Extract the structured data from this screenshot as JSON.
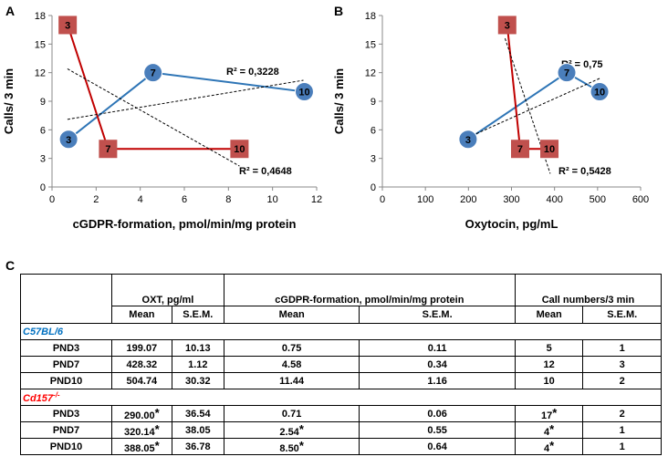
{
  "panels": {
    "a": "A",
    "b": "B",
    "c": "C"
  },
  "chart_data": [
    {
      "type": "scatter",
      "panel": "A",
      "title": "",
      "xlabel": "cGDPR-formation, pmol/min/mg protein",
      "ylabel": "Calls/ 3 min",
      "xlim": [
        0,
        12
      ],
      "ylim": [
        0,
        18
      ],
      "xticks": [
        0,
        2,
        4,
        6,
        8,
        10,
        12
      ],
      "yticks": [
        0,
        3,
        6,
        9,
        12,
        15,
        18
      ],
      "series": [
        {
          "name": "C57BL/6",
          "marker": "circle",
          "color": "#4a7ebb",
          "line_color": "#2e75b6",
          "x": [
            0.75,
            4.58,
            11.44
          ],
          "y": [
            5,
            12,
            10
          ],
          "labels": [
            "3",
            "7",
            "10"
          ]
        },
        {
          "name": "Cd157-/-",
          "marker": "square",
          "color": "#c0504d",
          "line_color": "#c00000",
          "x": [
            0.71,
            2.54,
            8.5
          ],
          "y": [
            17,
            4,
            4
          ],
          "labels": [
            "3",
            "7",
            "10"
          ]
        }
      ],
      "trendlines": [
        {
          "label": "R² = 0,3228",
          "x": [
            0.7,
            11.4
          ],
          "y": [
            7.1,
            11.2
          ]
        },
        {
          "label": "R² = 0,4648",
          "x": [
            0.7,
            8.5
          ],
          "y": [
            12.4,
            2.2
          ]
        }
      ]
    },
    {
      "type": "scatter",
      "panel": "B",
      "title": "",
      "xlabel": "Oxytocin, pg/mL",
      "ylabel": "Calls/ 3 min",
      "xlim": [
        0,
        600
      ],
      "ylim": [
        0,
        18
      ],
      "xticks": [
        0,
        100,
        200,
        300,
        400,
        500,
        600
      ],
      "yticks": [
        0,
        3,
        6,
        9,
        12,
        15,
        18
      ],
      "series": [
        {
          "name": "C57BL/6",
          "marker": "circle",
          "color": "#4a7ebb",
          "line_color": "#2e75b6",
          "x": [
            199.07,
            428.32,
            504.74
          ],
          "y": [
            5,
            12,
            10
          ],
          "labels": [
            "3",
            "7",
            "10"
          ]
        },
        {
          "name": "Cd157-/-",
          "marker": "square",
          "color": "#c0504d",
          "line_color": "#c00000",
          "x": [
            290.0,
            320.14,
            388.05
          ],
          "y": [
            17,
            4,
            4
          ],
          "labels": [
            "3",
            "7",
            "10"
          ]
        }
      ],
      "trendlines": [
        {
          "label": "R² = 0,75",
          "x": [
            199,
            505
          ],
          "y": [
            5.2,
            11.4
          ]
        },
        {
          "label": "R² = 0,5428",
          "x": [
            285,
            390
          ],
          "y": [
            15.6,
            1.4
          ]
        }
      ]
    }
  ],
  "table": {
    "col_groups": [
      "OXT, pg/ml",
      "cGDPR-formation, pmol/min/mg  protein",
      "Call numbers/3 min"
    ],
    "sub_headers": [
      "Mean",
      "S.E.M.",
      "Mean",
      "S.E.M.",
      "Mean",
      "S.E.M."
    ],
    "groups": [
      {
        "name": "C57BL/6",
        "name_sup": "",
        "color": "#0070c0",
        "rows": [
          {
            "label": "PND3",
            "cells": [
              "199.07",
              "10.13",
              "0.75",
              "0.11",
              "5",
              "1"
            ],
            "stars": [
              "",
              "",
              "",
              "",
              "",
              ""
            ]
          },
          {
            "label": "PND7",
            "cells": [
              "428.32",
              "1.12",
              "4.58",
              "0.34",
              "12",
              "3"
            ],
            "stars": [
              "",
              "",
              "",
              "",
              "",
              ""
            ]
          },
          {
            "label": "PND10",
            "cells": [
              "504.74",
              "30.32",
              "11.44",
              "1.16",
              "10",
              "2"
            ],
            "stars": [
              "",
              "",
              "",
              "",
              "",
              ""
            ]
          }
        ]
      },
      {
        "name": "Cd157",
        "name_sup": "-/-",
        "color": "#ff0000",
        "rows": [
          {
            "label": "PND3",
            "cells": [
              "290.00",
              "36.54",
              "0.71",
              "0.06",
              "17",
              "2"
            ],
            "stars": [
              "*",
              "",
              "",
              "",
              "*",
              ""
            ]
          },
          {
            "label": "PND7",
            "cells": [
              "320.14",
              "38.05",
              "2.54",
              "0.55",
              "4",
              "1"
            ],
            "stars": [
              "*",
              "",
              "*",
              "",
              "*",
              ""
            ]
          },
          {
            "label": "PND10",
            "cells": [
              "388.05",
              "36.78",
              "8.50",
              "0.64",
              "4",
              "1"
            ],
            "stars": [
              "*",
              "",
              "*",
              "",
              "*",
              ""
            ]
          }
        ]
      }
    ]
  }
}
